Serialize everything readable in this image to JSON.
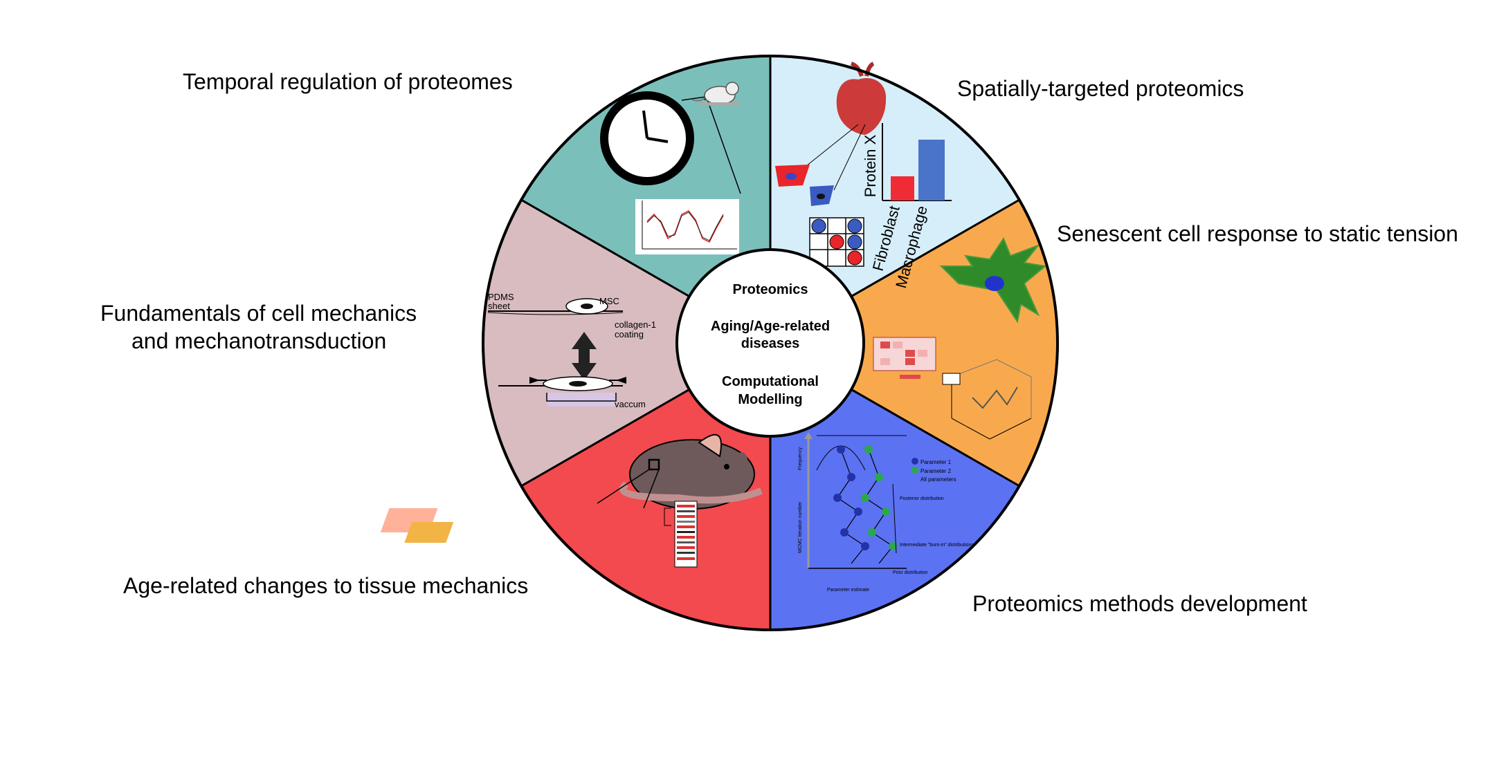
{
  "labels": {
    "temporal": "Temporal regulation of proteomes",
    "spatial": "Spatially-targeted proteomics",
    "senescent": "Senescent cell response to static tension",
    "fundamentals_line1": "Fundamentals of cell mechanics",
    "fundamentals_line2": "and mechanotransduction",
    "age_related": "Age-related changes to tissue mechanics",
    "methods": "Proteomics methods development"
  },
  "center": {
    "line1": "Proteomics",
    "line2a": "Aging/Age-related",
    "line2b": "diseases",
    "line3a": "Computational",
    "line3b": "Modelling"
  },
  "spatial_panel": {
    "ylabel": "Protein X",
    "cat1": "Fibroblast",
    "cat2": "Macrophage"
  },
  "mechanics_panel": {
    "pdms1": "PDMS",
    "pdms2": "sheet",
    "msc": "MSC",
    "coat1": "collagen-1",
    "coat2": "coating",
    "vacuum": "vaccum"
  },
  "methods_panel": {
    "legend1": "Parameter 1",
    "legend2": "Parameter 2",
    "legend3": "All parameters",
    "note1": "Posterior distribution",
    "note2": "Intermediate \"burn-in\" distributions",
    "note3": "Prior distribution",
    "xlabel": "Parameter estimate",
    "ylabel": "MCMC iteration number",
    "ylabel2": "Frequency"
  },
  "colors": {
    "temporal": "#7bbfbb",
    "spatial": "#d6eef9",
    "senescent": "#f9a94d",
    "methods": "#5b72f2",
    "age": "#f24a4e",
    "mechanics": "#d8bcc0"
  }
}
